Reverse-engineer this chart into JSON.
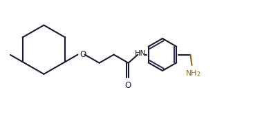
{
  "bg_color": "#ffffff",
  "line_color": "#1a1a2e",
  "line_color_dark": "#2d2d5e",
  "gold_color": "#8B6914",
  "line_width": 1.5,
  "fig_width": 4.06,
  "fig_height": 1.85,
  "dpi": 100,
  "xlim": [
    0,
    10.0
  ],
  "ylim": [
    0,
    4.5
  ]
}
